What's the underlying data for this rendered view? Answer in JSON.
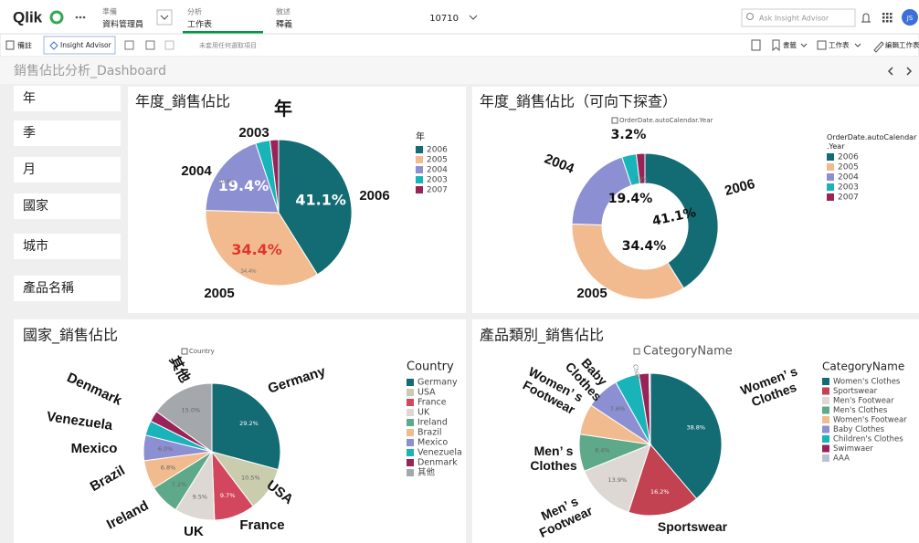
{
  "header": {
    "logo": "Qlik",
    "prepare_label": "準備",
    "prepare_item": "資料管理員",
    "analyze_label": "分析",
    "analyze_item": "工作表",
    "narrate_label": "敘述",
    "narrate_item": "釋義",
    "app_name": "10710",
    "search_placeholder": "Ask Insight Advisor",
    "avatar": "JS"
  },
  "toolbar": {
    "notes": "備註",
    "insight": "Insight Advisor",
    "selections": "未套用任何選取項目",
    "bookmarks": "書籤",
    "sheets": "工作表",
    "edit": "編輯工作表"
  },
  "sheet_title": "銷售佔比分析_Dashboard",
  "filters": [
    "年",
    "季",
    "月",
    "國家",
    "城市",
    "產品名稱"
  ],
  "charts": [
    {
      "type": "pie",
      "title": "年度_銷售佔比",
      "legend_title": "年",
      "categories": [
        "2006",
        "2005",
        "2004",
        "2003",
        "2007"
      ],
      "values": [
        41.1,
        34.4,
        19.4,
        3.2,
        1.9
      ],
      "value_labels": [
        "41.1%",
        "34.4%",
        "19.4%",
        null,
        null
      ],
      "colors": [
        "#136b74",
        "#f2bb8f",
        "#8c8fd1",
        "#19b4b9",
        "#992358"
      ],
      "annotations": [
        {
          "lines": [
            "年"
          ]
        },
        {
          "lines": [
            "2003"
          ]
        },
        {
          "lines": [
            "2004"
          ]
        },
        {
          "lines": [
            "2005"
          ]
        },
        {
          "lines": [
            "2006"
          ]
        },
        {
          "lines": [
            "19.4%"
          ]
        },
        {
          "lines": [
            "34.4%"
          ]
        }
      ]
    },
    {
      "type": "donut",
      "title": "年度_銷售佔比（可向下探查）",
      "axis_label": "OrderDate.autoCalendar.Year",
      "legend_title": "OrderDate.autoCalendar.Year",
      "categories": [
        "2006",
        "2005",
        "2004",
        "2003",
        "2007"
      ],
      "values": [
        41.1,
        34.4,
        19.4,
        3.2,
        1.9
      ],
      "value_labels": [
        "41.1%",
        "34.4%",
        "19.4%",
        "3.2%",
        null
      ],
      "colors": [
        "#136b74",
        "#f2bb8f",
        "#8c8fd1",
        "#19b4b9",
        "#992358"
      ],
      "annotations": [
        {
          "lines": [
            "2004"
          ]
        },
        {
          "lines": [
            "2006"
          ]
        },
        {
          "lines": [
            "2005"
          ]
        },
        {
          "lines": [
            "3.2%"
          ]
        }
      ]
    },
    {
      "type": "pie",
      "title": "國家_銷售佔比",
      "axis_label": "Country",
      "legend_title": "Country",
      "categories": [
        "Germany",
        "USA",
        "France",
        "UK",
        "Ireland",
        "Brazil",
        "Mexico",
        "Venezuela",
        "Denmark",
        "其他"
      ],
      "values": [
        29.2,
        10.5,
        9.7,
        9.5,
        7.2,
        6.8,
        6.0,
        3.5,
        2.6,
        15.0
      ],
      "value_labels": [
        "29.2%",
        "10.5%",
        "9.7%",
        "9.5%",
        "7.2%",
        "6.8%",
        "6.0%",
        null,
        null,
        "15.0%"
      ],
      "colors": [
        "#136b74",
        "#c9ccad",
        "#d2475e",
        "#ddd8d3",
        "#5ea98a",
        "#f2bb8f",
        "#8c8fd1",
        "#19b4b9",
        "#992358",
        "#a4a8ac"
      ],
      "annotations": [
        {
          "lines": [
            "其他"
          ]
        },
        {
          "lines": [
            "Denmark"
          ]
        },
        {
          "lines": [
            "Venezuela"
          ]
        },
        {
          "lines": [
            "Mexico"
          ]
        },
        {
          "lines": [
            "Brazil"
          ]
        },
        {
          "lines": [
            "Ireland"
          ]
        },
        {
          "lines": [
            "UK"
          ]
        },
        {
          "lines": [
            "France"
          ]
        },
        {
          "lines": [
            "USA"
          ]
        },
        {
          "lines": [
            "Germany"
          ]
        }
      ]
    },
    {
      "type": "pie",
      "title": "產品類別_銷售佔比",
      "axis_label": "CategoryName",
      "legend_title": "CategoryName",
      "categories": [
        "Women's Clothes",
        "Sportswear",
        "Men's Footwear",
        "Men's Clothes",
        "Women's Footwear",
        "Baby Clothes",
        "Children's Clothes",
        "Swimwaer",
        "AAA"
      ],
      "values": [
        38.8,
        16.2,
        13.9,
        8.4,
        7.0,
        7.6,
        5.5,
        2.3,
        0.3
      ],
      "value_labels": [
        "38.8%",
        "16.2%",
        "13.9%",
        "8.4%",
        null,
        "7.6%",
        null,
        null,
        null
      ],
      "colors": [
        "#136b74",
        "#c24251",
        "#ddd8d3",
        "#5ea98a",
        "#f2bb8f",
        "#8c8fd1",
        "#19b4b9",
        "#992358",
        "#b6c3d6"
      ],
      "annotations": [
        {
          "lines": [
            "Baby",
            "Clothes"
          ]
        },
        {
          "lines": [
            "Child..."
          ]
        },
        {
          "lines": [
            "Women’ s",
            "Footwear"
          ]
        },
        {
          "lines": [
            "Women’ s",
            "Clothes"
          ]
        },
        {
          "lines": [
            "Men’ s",
            "Clothes"
          ]
        },
        {
          "lines": [
            "Men’ s",
            "Footwear"
          ]
        },
        {
          "lines": [
            "Sportswear"
          ]
        }
      ]
    }
  ]
}
